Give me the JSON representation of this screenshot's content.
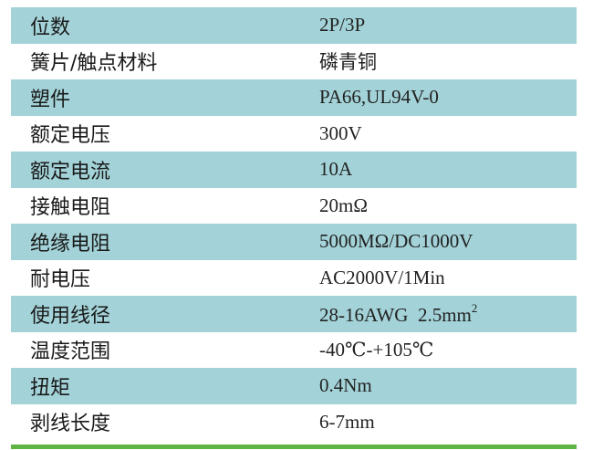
{
  "rows": [
    {
      "label": "位数",
      "value": "2P/3P"
    },
    {
      "label": "簧片/触点材料",
      "value": "磷青铜"
    },
    {
      "label": "塑件",
      "value": "PA66,UL94V-0"
    },
    {
      "label": "额定电压",
      "value": "300V"
    },
    {
      "label": "额定电流",
      "value": "10A"
    },
    {
      "label": "接触电阻",
      "value": "20mΩ"
    },
    {
      "label": "绝缘电阻",
      "value": "5000MΩ/DC1000V"
    },
    {
      "label": "耐电压",
      "value": "AC2000V/1Min"
    },
    {
      "label": "使用线径",
      "value": "28-16AWG  2.5mm",
      "sup": "2"
    },
    {
      "label": "温度范围",
      "value": "-40℃-+105℃"
    },
    {
      "label": "扭矩",
      "value": "0.4Nm"
    },
    {
      "label": "剥线长度",
      "value": "6-7mm"
    }
  ],
  "colors": {
    "shade": "#a3d3d8",
    "accent_line": "#5db443"
  }
}
